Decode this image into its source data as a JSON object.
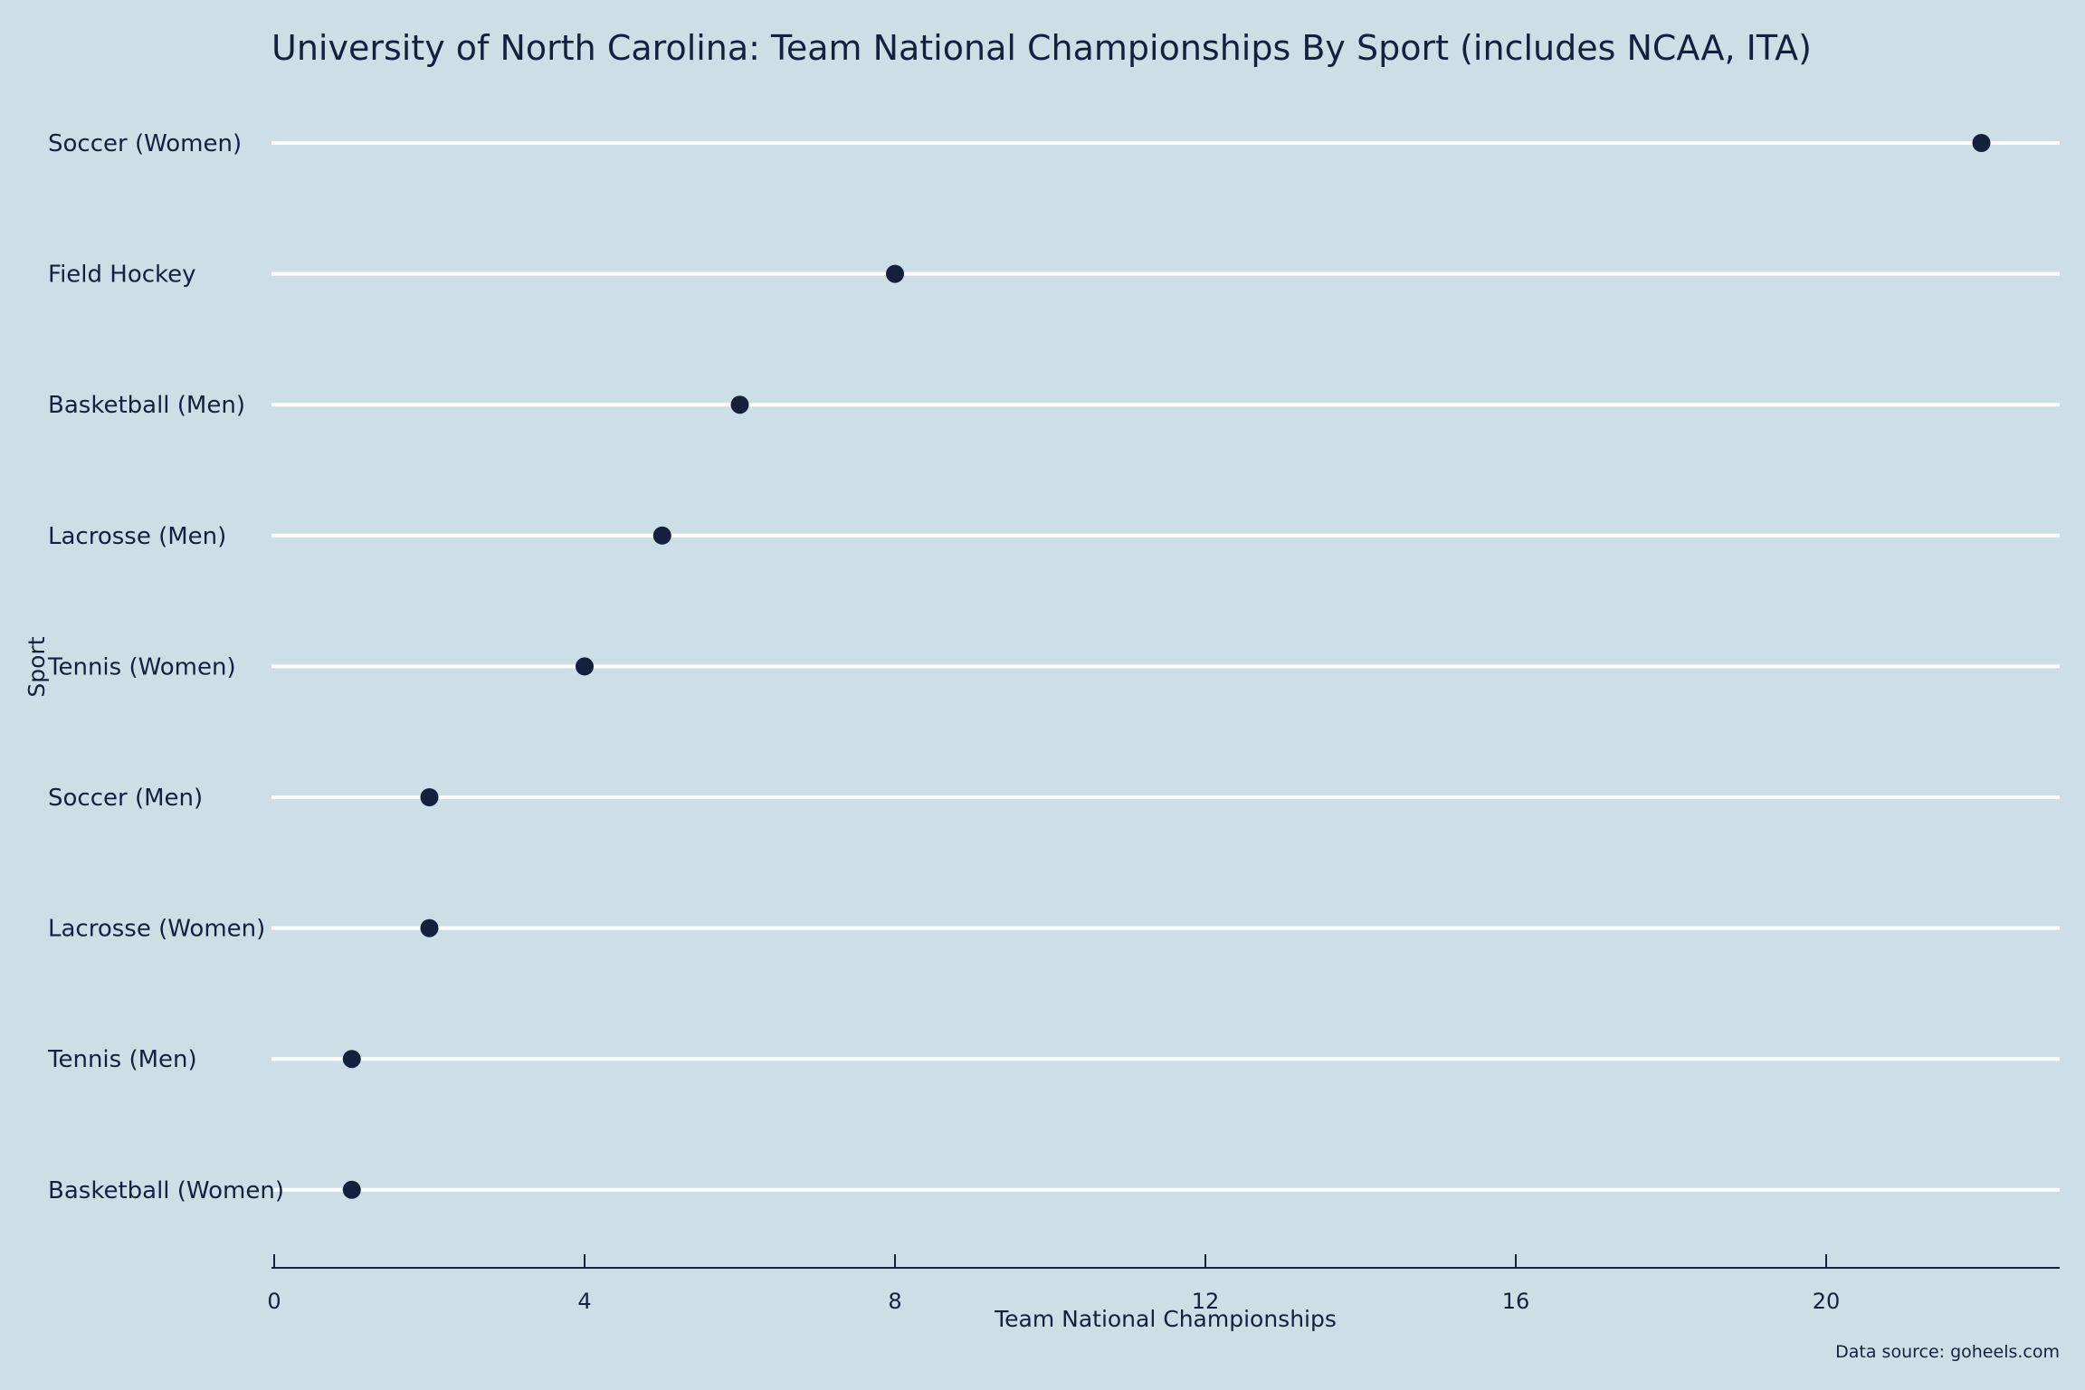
{
  "chart_data": {
    "type": "scatter",
    "title": "University of North Carolina: Team National Championships By Sport (includes NCAA, ITA)",
    "xlabel": "Team National Championships",
    "ylabel": "Sport",
    "caption": "Data source: goheels.com",
    "categories": [
      "Soccer (Women)",
      "Field Hockey",
      "Basketball (Men)",
      "Lacrosse (Men)",
      "Tennis (Women)",
      "Soccer (Men)",
      "Lacrosse (Women)",
      "Tennis (Men)",
      "Basketball (Women)"
    ],
    "values": [
      22,
      8,
      6,
      5,
      4,
      2,
      2,
      1,
      1
    ],
    "xlim": [
      0,
      23
    ],
    "xticks": [
      0,
      4,
      8,
      12,
      16,
      20
    ],
    "grid": "horizontal lines per category",
    "colors": {
      "background": "#cddfe6",
      "point": "#14213d",
      "gridline": "#ffffff",
      "text": "#14213d"
    }
  }
}
